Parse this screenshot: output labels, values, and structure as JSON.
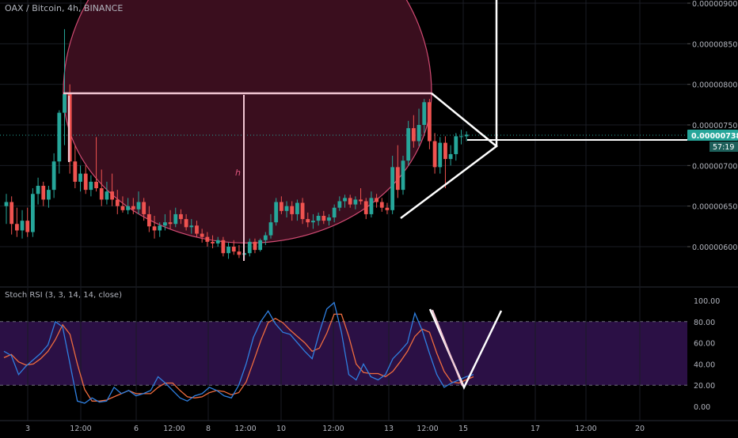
{
  "header": {
    "symbol_line": "OAX / Bitcoin, 4h, BINANCE"
  },
  "colors": {
    "up": "#26a69a",
    "down": "#ef5350",
    "circle_fill": "#3a0e1e",
    "circle_stroke": "#d24b73",
    "drawing": "#ffffff",
    "measure_line": "#f2c6d3",
    "rsi_k": "#2f7fe0",
    "rsi_d": "#ef6c3e",
    "rsi_band": "#2b1045",
    "last_price_bg": "#26a69a"
  },
  "price_pane": {
    "y_ticks": [
      "0.00000900",
      "0.00000850",
      "0.00000800",
      "0.00000750",
      "0.00000700",
      "0.00000650",
      "0.00000600"
    ],
    "y_range": [
      5.85e-06,
      9e-06
    ],
    "last_price_label": "0.00000738",
    "countdown_label": "57:19",
    "measure_label": "h"
  },
  "rsi_pane": {
    "title": "Stoch RSI (3, 3, 14, 14, close)",
    "y_ticks": [
      "100.00",
      "80.00",
      "60.00",
      "40.00",
      "20.00",
      "0.00"
    ],
    "y_range": [
      -8,
      107
    ],
    "upper_band": 80,
    "lower_band": 20
  },
  "x_axis": {
    "tick_labels": [
      "3",
      "12:00",
      "6",
      "12:00",
      "8",
      "12:00",
      "10",
      "12:00",
      "13",
      "12:00",
      "15",
      "17",
      "12:00",
      "20"
    ]
  },
  "chart_data": {
    "type": "candlestick",
    "title": "OAX / Bitcoin, 4h, BINANCE",
    "candles": [
      {
        "o": 650,
        "h": 665,
        "l": 628,
        "c": 655
      },
      {
        "o": 655,
        "h": 662,
        "l": 615,
        "c": 628
      },
      {
        "o": 628,
        "h": 648,
        "l": 612,
        "c": 620
      },
      {
        "o": 620,
        "h": 645,
        "l": 610,
        "c": 632
      },
      {
        "o": 632,
        "h": 648,
        "l": 612,
        "c": 618
      },
      {
        "o": 618,
        "h": 672,
        "l": 612,
        "c": 665
      },
      {
        "o": 665,
        "h": 685,
        "l": 652,
        "c": 675
      },
      {
        "o": 675,
        "h": 680,
        "l": 650,
        "c": 658
      },
      {
        "o": 658,
        "h": 675,
        "l": 648,
        "c": 670
      },
      {
        "o": 670,
        "h": 715,
        "l": 660,
        "c": 705
      },
      {
        "o": 705,
        "h": 768,
        "l": 690,
        "c": 765
      },
      {
        "o": 765,
        "h": 868,
        "l": 725,
        "c": 788
      },
      {
        "o": 788,
        "h": 800,
        "l": 690,
        "c": 705
      },
      {
        "o": 705,
        "h": 725,
        "l": 672,
        "c": 680
      },
      {
        "o": 680,
        "h": 700,
        "l": 668,
        "c": 690
      },
      {
        "o": 690,
        "h": 700,
        "l": 665,
        "c": 670
      },
      {
        "o": 670,
        "h": 688,
        "l": 662,
        "c": 680
      },
      {
        "o": 680,
        "h": 735,
        "l": 668,
        "c": 672
      },
      {
        "o": 672,
        "h": 695,
        "l": 650,
        "c": 658
      },
      {
        "o": 658,
        "h": 680,
        "l": 652,
        "c": 668
      },
      {
        "o": 668,
        "h": 690,
        "l": 650,
        "c": 658
      },
      {
        "o": 658,
        "h": 670,
        "l": 640,
        "c": 650
      },
      {
        "o": 650,
        "h": 662,
        "l": 642,
        "c": 645
      },
      {
        "o": 645,
        "h": 660,
        "l": 640,
        "c": 650
      },
      {
        "o": 650,
        "h": 660,
        "l": 640,
        "c": 646
      },
      {
        "o": 646,
        "h": 668,
        "l": 640,
        "c": 655
      },
      {
        "o": 655,
        "h": 660,
        "l": 632,
        "c": 640
      },
      {
        "o": 640,
        "h": 650,
        "l": 618,
        "c": 625
      },
      {
        "o": 625,
        "h": 638,
        "l": 610,
        "c": 620
      },
      {
        "o": 620,
        "h": 630,
        "l": 612,
        "c": 626
      },
      {
        "o": 626,
        "h": 640,
        "l": 620,
        "c": 630
      },
      {
        "o": 630,
        "h": 645,
        "l": 622,
        "c": 628
      },
      {
        "o": 628,
        "h": 648,
        "l": 624,
        "c": 640
      },
      {
        "o": 640,
        "h": 646,
        "l": 628,
        "c": 634
      },
      {
        "o": 634,
        "h": 640,
        "l": 620,
        "c": 624
      },
      {
        "o": 624,
        "h": 634,
        "l": 616,
        "c": 626
      },
      {
        "o": 626,
        "h": 632,
        "l": 612,
        "c": 616
      },
      {
        "o": 616,
        "h": 622,
        "l": 605,
        "c": 612
      },
      {
        "o": 612,
        "h": 618,
        "l": 600,
        "c": 606
      },
      {
        "o": 606,
        "h": 614,
        "l": 598,
        "c": 604
      },
      {
        "o": 604,
        "h": 612,
        "l": 600,
        "c": 608
      },
      {
        "o": 608,
        "h": 612,
        "l": 588,
        "c": 592
      },
      {
        "o": 592,
        "h": 605,
        "l": 585,
        "c": 600
      },
      {
        "o": 600,
        "h": 608,
        "l": 590,
        "c": 594
      },
      {
        "o": 594,
        "h": 602,
        "l": 586,
        "c": 590
      },
      {
        "o": 590,
        "h": 594,
        "l": 584,
        "c": 592
      },
      {
        "o": 592,
        "h": 610,
        "l": 588,
        "c": 606
      },
      {
        "o": 606,
        "h": 610,
        "l": 592,
        "c": 596
      },
      {
        "o": 596,
        "h": 610,
        "l": 594,
        "c": 608
      },
      {
        "o": 608,
        "h": 618,
        "l": 602,
        "c": 614
      },
      {
        "o": 614,
        "h": 640,
        "l": 610,
        "c": 630
      },
      {
        "o": 630,
        "h": 660,
        "l": 626,
        "c": 655
      },
      {
        "o": 655,
        "h": 662,
        "l": 640,
        "c": 644
      },
      {
        "o": 644,
        "h": 656,
        "l": 636,
        "c": 650
      },
      {
        "o": 650,
        "h": 656,
        "l": 632,
        "c": 640
      },
      {
        "o": 640,
        "h": 658,
        "l": 632,
        "c": 654
      },
      {
        "o": 654,
        "h": 660,
        "l": 628,
        "c": 634
      },
      {
        "o": 634,
        "h": 642,
        "l": 624,
        "c": 630
      },
      {
        "o": 630,
        "h": 640,
        "l": 622,
        "c": 632
      },
      {
        "o": 632,
        "h": 642,
        "l": 626,
        "c": 638
      },
      {
        "o": 638,
        "h": 644,
        "l": 628,
        "c": 632
      },
      {
        "o": 632,
        "h": 640,
        "l": 626,
        "c": 636
      },
      {
        "o": 636,
        "h": 652,
        "l": 630,
        "c": 648
      },
      {
        "o": 648,
        "h": 662,
        "l": 644,
        "c": 656
      },
      {
        "o": 656,
        "h": 664,
        "l": 648,
        "c": 660
      },
      {
        "o": 660,
        "h": 664,
        "l": 648,
        "c": 652
      },
      {
        "o": 652,
        "h": 662,
        "l": 646,
        "c": 658
      },
      {
        "o": 658,
        "h": 672,
        "l": 652,
        "c": 656
      },
      {
        "o": 656,
        "h": 660,
        "l": 634,
        "c": 640
      },
      {
        "o": 640,
        "h": 668,
        "l": 636,
        "c": 660
      },
      {
        "o": 660,
        "h": 665,
        "l": 648,
        "c": 655
      },
      {
        "o": 655,
        "h": 660,
        "l": 643,
        "c": 648
      },
      {
        "o": 648,
        "h": 654,
        "l": 640,
        "c": 645
      },
      {
        "o": 645,
        "h": 712,
        "l": 640,
        "c": 698
      },
      {
        "o": 698,
        "h": 725,
        "l": 660,
        "c": 670
      },
      {
        "o": 670,
        "h": 712,
        "l": 664,
        "c": 706
      },
      {
        "o": 706,
        "h": 755,
        "l": 700,
        "c": 746
      },
      {
        "o": 746,
        "h": 762,
        "l": 722,
        "c": 730
      },
      {
        "o": 730,
        "h": 770,
        "l": 724,
        "c": 750
      },
      {
        "o": 750,
        "h": 782,
        "l": 740,
        "c": 778
      },
      {
        "o": 778,
        "h": 782,
        "l": 720,
        "c": 730
      },
      {
        "o": 730,
        "h": 740,
        "l": 690,
        "c": 698
      },
      {
        "o": 698,
        "h": 735,
        "l": 690,
        "c": 728
      },
      {
        "o": 728,
        "h": 736,
        "l": 672,
        "c": 708
      },
      {
        "o": 708,
        "h": 725,
        "l": 700,
        "c": 714
      },
      {
        "o": 714,
        "h": 740,
        "l": 706,
        "c": 736
      },
      {
        "o": 736,
        "h": 744,
        "l": 726,
        "c": 736
      },
      {
        "o": 736,
        "h": 742,
        "l": 730,
        "c": 738
      }
    ],
    "stoch_rsi_k": [
      52,
      48,
      30,
      38,
      44,
      50,
      58,
      80,
      75,
      40,
      5,
      3,
      8,
      4,
      5,
      18,
      12,
      15,
      10,
      12,
      15,
      28,
      22,
      15,
      8,
      5,
      10,
      12,
      18,
      15,
      10,
      8,
      20,
      40,
      65,
      80,
      90,
      78,
      70,
      68,
      60,
      52,
      45,
      70,
      92,
      98,
      70,
      30,
      25,
      40,
      28,
      25,
      30,
      45,
      52,
      60,
      88,
      72,
      50,
      30,
      18,
      22,
      25,
      28,
      30
    ],
    "stoch_rsi_d": [
      46,
      49,
      42,
      39,
      40,
      45,
      52,
      63,
      77,
      68,
      40,
      16,
      5,
      5,
      6,
      9,
      12,
      15,
      12,
      12,
      12,
      18,
      22,
      22,
      15,
      9,
      8,
      9,
      13,
      15,
      14,
      11,
      13,
      23,
      42,
      62,
      79,
      83,
      79,
      72,
      66,
      60,
      52,
      55,
      69,
      87,
      87,
      66,
      40,
      32,
      31,
      31,
      28,
      33,
      42,
      52,
      66,
      73,
      70,
      50,
      33,
      23,
      22,
      25,
      28
    ]
  }
}
